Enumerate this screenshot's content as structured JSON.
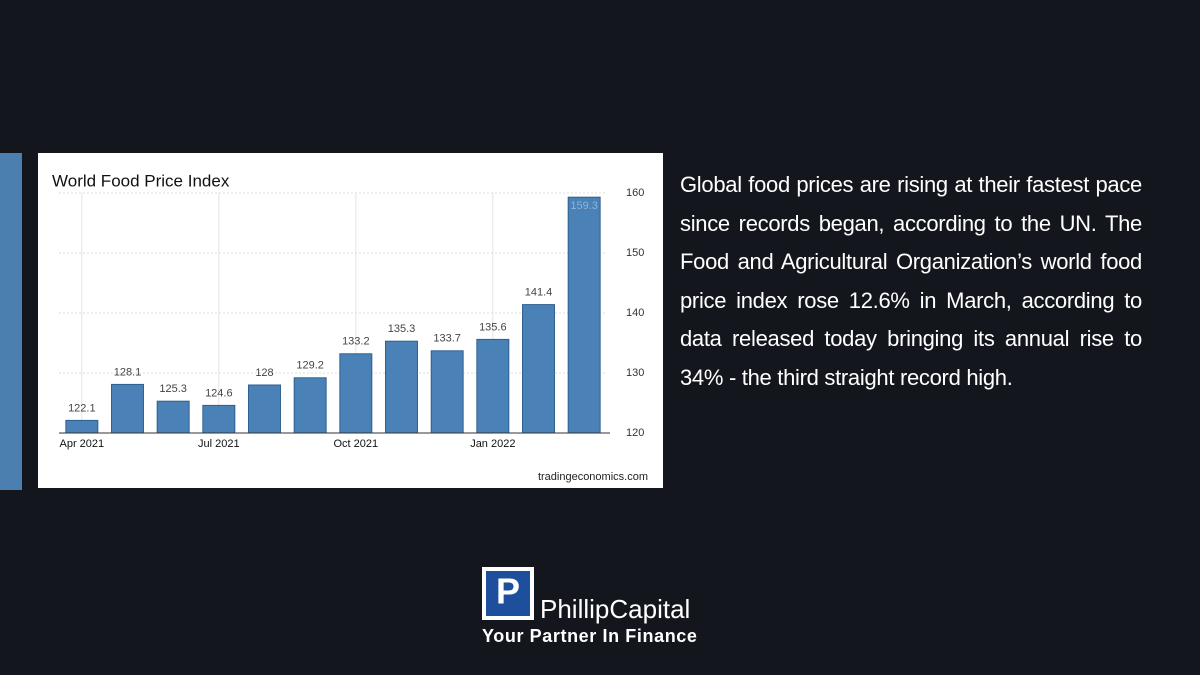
{
  "chart_data": {
    "type": "bar",
    "title": "World Food Price Index",
    "categories": [
      "Apr 2021",
      null,
      null,
      "Jul 2021",
      null,
      null,
      "Oct 2021",
      null,
      null,
      "Jan 2022",
      null,
      null
    ],
    "values": [
      122.1,
      128.1,
      125.3,
      124.6,
      128,
      129.2,
      133.2,
      135.3,
      133.7,
      135.6,
      141.4,
      159.3
    ],
    "color": "#4a82b8",
    "ylim": [
      120,
      160
    ],
    "yticks": [
      120,
      130,
      140,
      150,
      160
    ],
    "grid": true,
    "source": "tradingeconomics.com"
  },
  "paragraph": "Global food prices are rising at their fastest pace since records began, according to the UN. The Food and Agricultural Organization’s world food price index rose 12.6% in March, according to data released today bringing its annual rise to 34% - the third straight record high.",
  "logo": {
    "name": "PhillipCapital",
    "tagline": "Your Partner In Finance"
  }
}
